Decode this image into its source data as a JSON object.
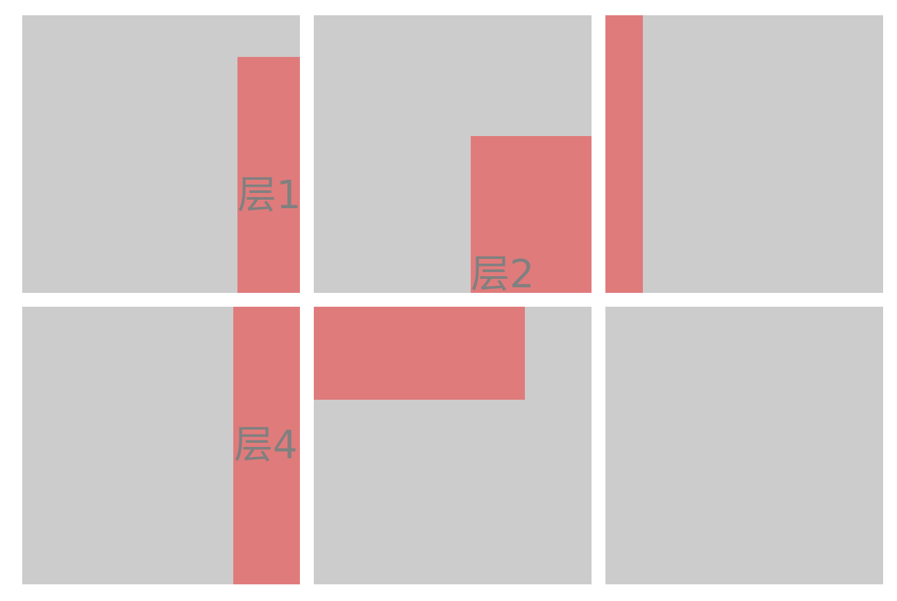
{
  "colors": {
    "background": "#ffffff",
    "panel": "#cccccc",
    "overlay": "#e07b7b",
    "label": "#808080"
  },
  "panels": [
    {
      "label": "层1"
    },
    {
      "label": "层2"
    },
    {
      "label": ""
    },
    {
      "label": "层4"
    },
    {
      "label": ""
    },
    {
      "label": ""
    }
  ]
}
